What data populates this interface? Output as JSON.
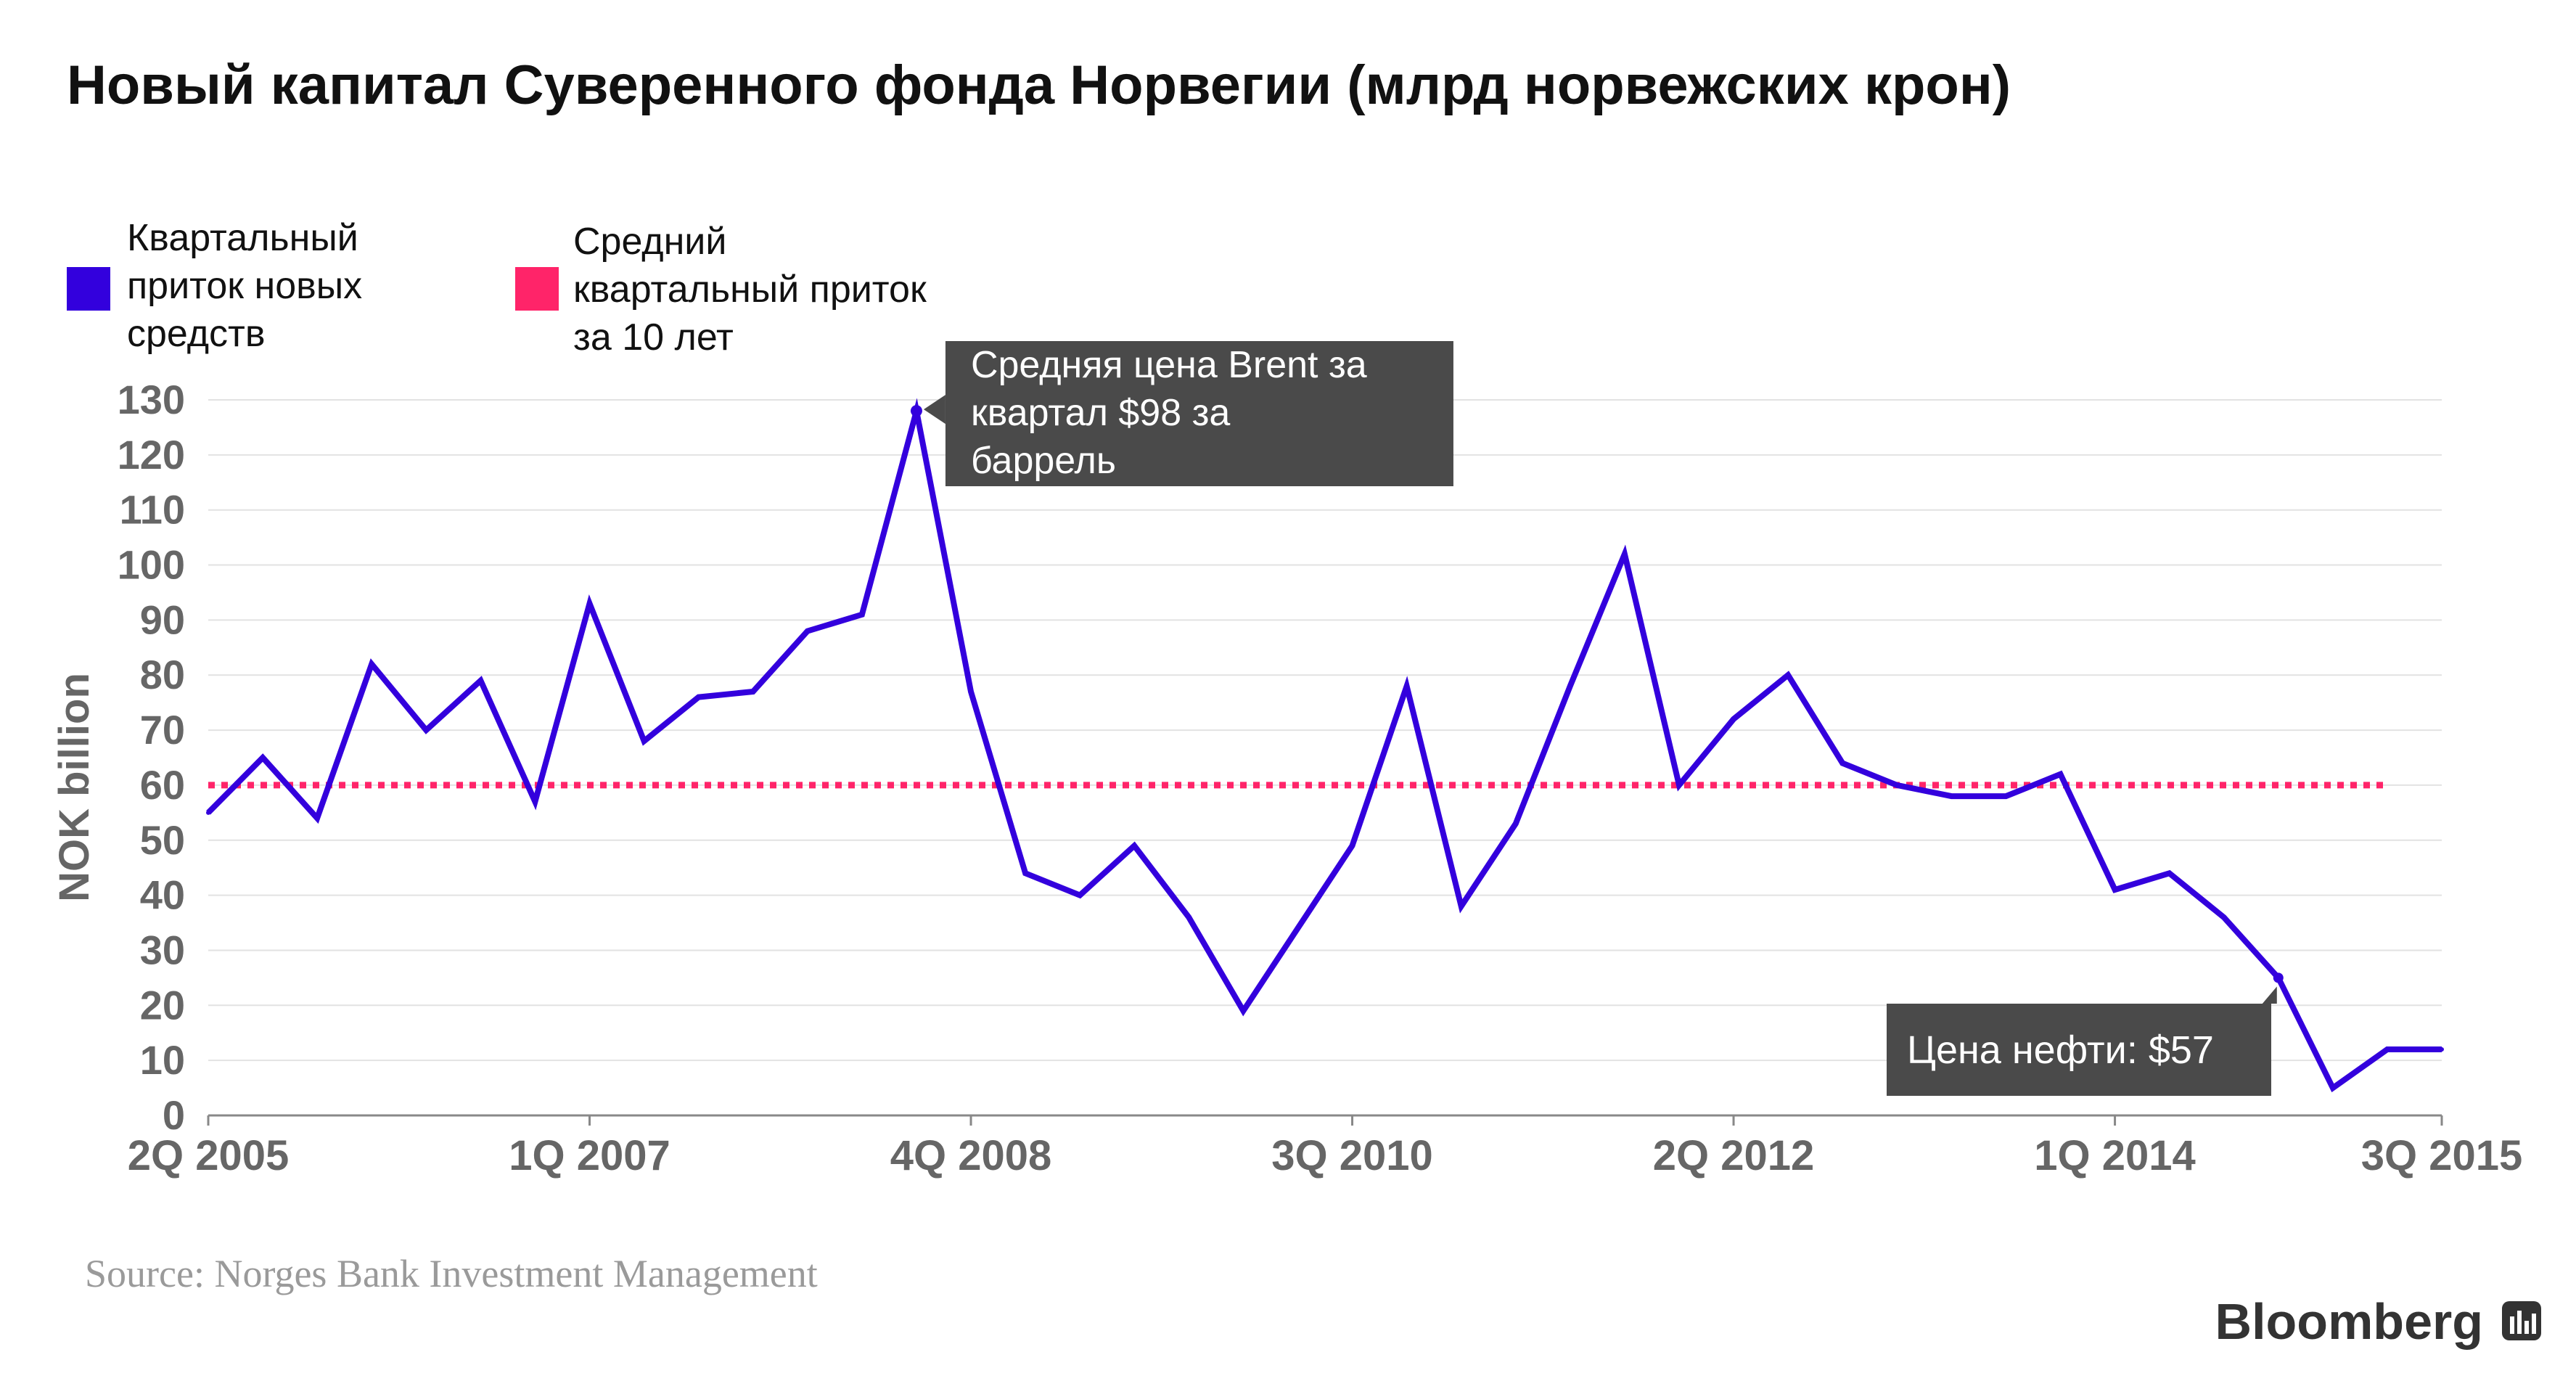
{
  "chart_data": {
    "type": "line",
    "title": "Новый капитал Суверенного фонда Норвегии (млрд норвежских крон)",
    "ylabel": "NOK billion",
    "ylim": [
      0,
      130
    ],
    "yticks": [
      0,
      10,
      20,
      30,
      40,
      50,
      60,
      70,
      80,
      90,
      100,
      110,
      120,
      130
    ],
    "grid": true,
    "x_range": [
      0,
      41
    ],
    "x_tick_labels": [
      {
        "index": 0,
        "label": "2Q 2005"
      },
      {
        "index": 7,
        "label": "1Q 2007"
      },
      {
        "index": 14,
        "label": "4Q 2008"
      },
      {
        "index": 21,
        "label": "3Q 2010"
      },
      {
        "index": 28,
        "label": "2Q 2012"
      },
      {
        "index": 35,
        "label": "1Q 2014"
      },
      {
        "index": 41,
        "label": "3Q 2015"
      }
    ],
    "legend": [
      {
        "label": "Квартальный приток новых средств",
        "lines": [
          "Квартальный",
          "приток новых",
          "средств"
        ],
        "color": "#3300dd"
      },
      {
        "label": "Средний квартальный приток за 10 лет",
        "lines": [
          "Средний",
          "квартальный приток",
          "за 10 лет"
        ],
        "color": "#ff2469"
      }
    ],
    "series": [
      {
        "name": "Квартальный приток новых средств",
        "color": "#3300dd",
        "x": [
          0,
          1,
          2,
          3,
          4,
          5,
          6,
          7,
          8,
          9,
          10,
          11,
          12,
          13,
          14,
          15,
          16,
          17,
          18,
          19,
          20,
          21,
          22,
          23,
          24,
          25,
          26,
          27,
          28,
          29,
          30,
          31,
          32,
          33,
          34,
          35,
          36,
          37,
          38,
          39,
          40,
          41
        ],
        "values": [
          55,
          65,
          54,
          82,
          70,
          79,
          57,
          93,
          68,
          76,
          77,
          88,
          91,
          128,
          77,
          44,
          40,
          49,
          36,
          19,
          34,
          49,
          78,
          38,
          53,
          78,
          102,
          60,
          72,
          80,
          64,
          60,
          58,
          58,
          62,
          41,
          44,
          36,
          25,
          5,
          12,
          12
        ]
      },
      {
        "name": "Средний квартальный приток за 10 лет",
        "color": "#ff2469",
        "x": [
          0,
          40
        ],
        "values": [
          60,
          60
        ]
      }
    ],
    "annotations": [
      {
        "lines": [
          "Средняя цена Brent за",
          "квартал $98 за",
          "баррель"
        ],
        "point_index": 13
      },
      {
        "lines": [
          "Цена нефти: $57"
        ],
        "point_index": 38
      }
    ]
  },
  "source": "Source: Norges Bank Investment Management",
  "brand": "Bloomberg",
  "colors": {
    "series": "#3300dd",
    "average": "#ff2469",
    "grid": "#e2e2e2",
    "axis": "#888888",
    "annotation_bg": "#4a4a4a",
    "tick_text": "#666666"
  }
}
